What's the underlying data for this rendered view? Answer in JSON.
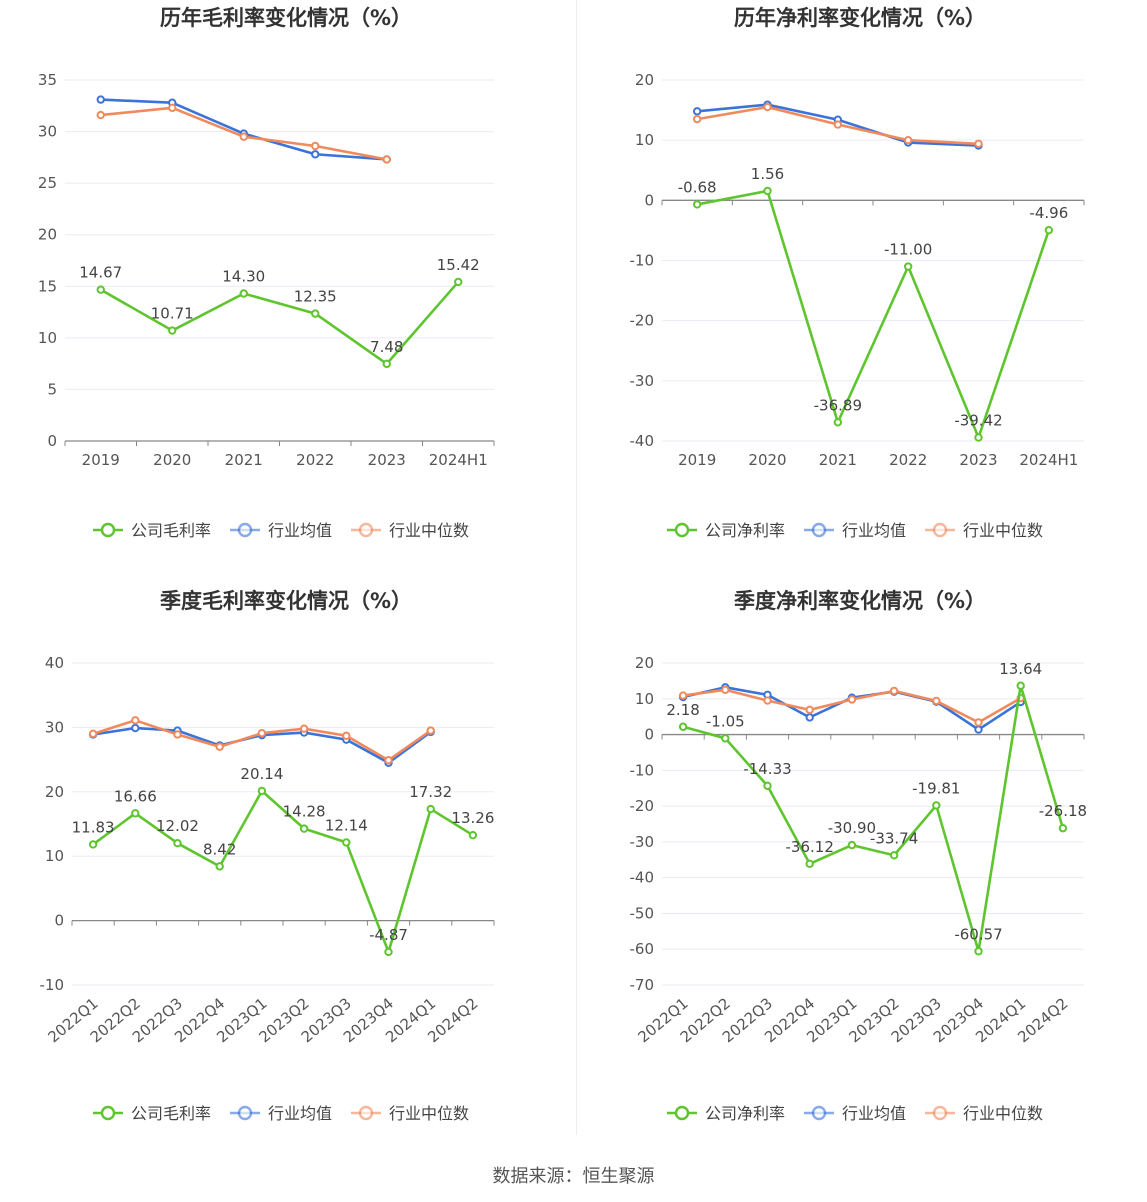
{
  "colors": {
    "company": "#5ec52e",
    "avg": "#3b73d9",
    "median": "#f08a5d",
    "axis": "#888888",
    "grid": "#e8ebf3",
    "text": "#555555",
    "title": "#333333"
  },
  "source_text": "数据来源：恒生聚源",
  "chart_data": [
    {
      "type": "line",
      "title": "历年毛利率变化情况（%）",
      "categories": [
        "2019",
        "2020",
        "2021",
        "2022",
        "2023",
        "2024H1"
      ],
      "ylim": [
        0,
        35
      ],
      "yticks": [
        0,
        5,
        10,
        15,
        20,
        25,
        30,
        35
      ],
      "grid": true,
      "legend_position": "bottom",
      "series": [
        {
          "name": "公司毛利率",
          "key": "company",
          "values": [
            14.67,
            10.71,
            14.3,
            12.35,
            7.48,
            15.42
          ],
          "labels": [
            "14.67",
            "10.71",
            "14.30",
            "12.35",
            "7.48",
            "15.42"
          ]
        },
        {
          "name": "行业均值",
          "key": "avg",
          "values": [
            33.1,
            32.8,
            29.8,
            27.8,
            27.3,
            null
          ]
        },
        {
          "name": "行业中位数",
          "key": "median",
          "values": [
            31.6,
            32.3,
            29.5,
            28.6,
            27.3,
            null
          ]
        }
      ]
    },
    {
      "type": "line",
      "title": "历年净利率变化情况（%）",
      "categories": [
        "2019",
        "2020",
        "2021",
        "2022",
        "2023",
        "2024H1"
      ],
      "ylim": [
        -40,
        20
      ],
      "yticks": [
        -40,
        -30,
        -20,
        -10,
        0,
        10,
        20
      ],
      "grid": true,
      "legend_position": "bottom",
      "series": [
        {
          "name": "公司净利率",
          "key": "company",
          "values": [
            -0.68,
            1.56,
            -36.89,
            -11.0,
            -39.42,
            -4.96
          ],
          "labels": [
            "-0.68",
            "1.56",
            "-36.89",
            "-11.00",
            "-39.42",
            "-4.96"
          ]
        },
        {
          "name": "行业均值",
          "key": "avg",
          "values": [
            14.8,
            15.9,
            13.4,
            9.6,
            9.1,
            null
          ]
        },
        {
          "name": "行业中位数",
          "key": "median",
          "values": [
            13.5,
            15.5,
            12.6,
            10.0,
            9.4,
            null
          ]
        }
      ]
    },
    {
      "type": "line",
      "title": "季度毛利率变化情况（%）",
      "categories": [
        "2022Q1",
        "2022Q2",
        "2022Q3",
        "2022Q4",
        "2023Q1",
        "2023Q2",
        "2023Q3",
        "2023Q4",
        "2024Q1",
        "2024Q2"
      ],
      "ylim": [
        -10,
        40
      ],
      "yticks": [
        -10,
        0,
        10,
        20,
        30,
        40
      ],
      "grid": true,
      "legend_position": "bottom",
      "series": [
        {
          "name": "公司毛利率",
          "key": "company",
          "values": [
            11.83,
            16.66,
            12.02,
            8.42,
            20.14,
            14.28,
            12.14,
            -4.87,
            17.32,
            13.26
          ],
          "labels": [
            "11.83",
            "16.66",
            "12.02",
            "8.42",
            "20.14",
            "14.28",
            "12.14",
            "-4.87",
            "17.32",
            "13.26"
          ]
        },
        {
          "name": "行业均值",
          "key": "avg",
          "values": [
            28.9,
            29.9,
            29.5,
            27.2,
            28.8,
            29.2,
            28.1,
            24.5,
            29.3,
            null
          ]
        },
        {
          "name": "行业中位数",
          "key": "median",
          "values": [
            29.0,
            31.1,
            28.9,
            27.0,
            29.1,
            29.8,
            28.7,
            24.9,
            29.5,
            null
          ]
        }
      ]
    },
    {
      "type": "line",
      "title": "季度净利率变化情况（%）",
      "categories": [
        "2022Q1",
        "2022Q2",
        "2022Q3",
        "2022Q4",
        "2023Q1",
        "2023Q2",
        "2023Q3",
        "2023Q4",
        "2024Q1",
        "2024Q2"
      ],
      "ylim": [
        -70,
        20
      ],
      "yticks": [
        -70,
        -60,
        -50,
        -40,
        -30,
        -20,
        -10,
        0,
        10,
        20
      ],
      "grid": true,
      "legend_position": "bottom",
      "series": [
        {
          "name": "公司净利率",
          "key": "company",
          "values": [
            2.18,
            -1.05,
            -14.33,
            -36.12,
            -30.9,
            -33.74,
            -19.81,
            -60.57,
            13.64,
            -26.18
          ],
          "labels": [
            "2.18",
            "-1.05",
            "-14.33",
            "-36.12",
            "-30.90",
            "-33.74",
            "-19.81",
            "-60.57",
            "13.64",
            "-26.18"
          ]
        },
        {
          "name": "行业均值",
          "key": "avg",
          "values": [
            10.5,
            13.2,
            11.1,
            4.8,
            10.3,
            12.0,
            9.2,
            1.4,
            9.1,
            null
          ]
        },
        {
          "name": "行业中位数",
          "key": "median",
          "values": [
            10.9,
            12.5,
            9.5,
            6.9,
            9.8,
            12.2,
            9.4,
            3.4,
            10.2,
            null
          ]
        }
      ]
    }
  ]
}
